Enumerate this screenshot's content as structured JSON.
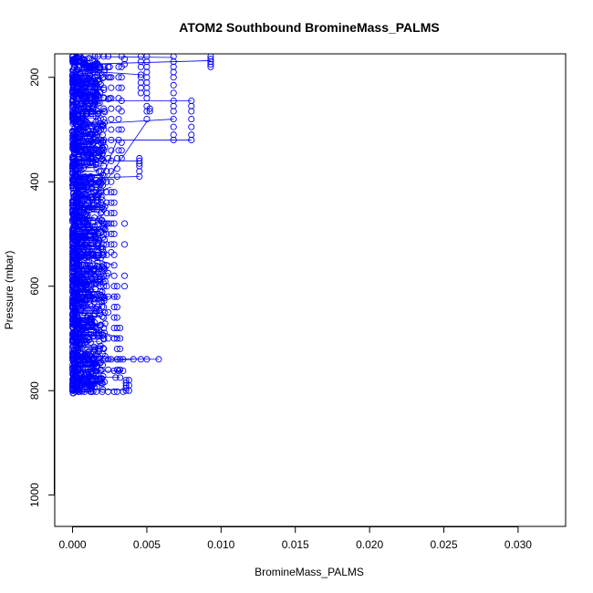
{
  "chart_data": {
    "type": "scatter",
    "title": "ATOM2 Southbound BromineMass_PALMS",
    "xlabel": "BromineMass_PALMS",
    "ylabel": "Pressure (mbar)",
    "xlim": [
      -0.0012,
      0.0332
    ],
    "ylim": [
      1060,
      155
    ],
    "y_reversed": true,
    "x_ticks": [
      0.0,
      0.005,
      0.01,
      0.015,
      0.02,
      0.025,
      0.03
    ],
    "x_tick_labels": [
      "0.000",
      "0.005",
      "0.010",
      "0.015",
      "0.020",
      "0.025",
      "0.030"
    ],
    "y_ticks": [
      200,
      400,
      600,
      800,
      1000
    ],
    "y_tick_labels": [
      "200",
      "400",
      "600",
      "800",
      "1000"
    ],
    "series": [
      {
        "color": "#0000ff",
        "marker": "open-circle",
        "connected": true,
        "points": [
          [
            0.0093,
            160
          ],
          [
            0.0093,
            165
          ],
          [
            0.0093,
            170
          ],
          [
            0.0093,
            175
          ],
          [
            0.0093,
            180
          ],
          [
            0.0068,
            160
          ],
          [
            0.0068,
            170
          ],
          [
            0.0068,
            180
          ],
          [
            0.0068,
            190
          ],
          [
            0.0068,
            200
          ],
          [
            0.0068,
            215
          ],
          [
            0.0068,
            230
          ],
          [
            0.0068,
            245
          ],
          [
            0.0068,
            255
          ],
          [
            0.0068,
            265
          ],
          [
            0.0068,
            280
          ],
          [
            0.0068,
            295
          ],
          [
            0.0068,
            310
          ],
          [
            0.0068,
            320
          ],
          [
            0.008,
            245
          ],
          [
            0.008,
            255
          ],
          [
            0.008,
            265
          ],
          [
            0.008,
            280
          ],
          [
            0.008,
            295
          ],
          [
            0.008,
            310
          ],
          [
            0.008,
            320
          ],
          [
            0.0046,
            160
          ],
          [
            0.0046,
            170
          ],
          [
            0.0046,
            180
          ],
          [
            0.0046,
            195
          ],
          [
            0.0046,
            200
          ],
          [
            0.0046,
            210
          ],
          [
            0.0046,
            220
          ],
          [
            0.0046,
            230
          ],
          [
            0.005,
            160
          ],
          [
            0.005,
            170
          ],
          [
            0.005,
            180
          ],
          [
            0.005,
            190
          ],
          [
            0.005,
            200
          ],
          [
            0.005,
            210
          ],
          [
            0.005,
            220
          ],
          [
            0.005,
            230
          ],
          [
            0.005,
            240
          ],
          [
            0.005,
            255
          ],
          [
            0.005,
            265
          ],
          [
            0.005,
            280
          ],
          [
            0.0052,
            260
          ],
          [
            0.0052,
            265
          ],
          [
            0.0045,
            355
          ],
          [
            0.0045,
            360
          ],
          [
            0.0045,
            365
          ],
          [
            0.0045,
            370
          ],
          [
            0.0045,
            380
          ],
          [
            0.0045,
            390
          ],
          [
            0.0031,
            180
          ],
          [
            0.0031,
            200
          ],
          [
            0.0031,
            220
          ],
          [
            0.0031,
            240
          ],
          [
            0.0031,
            260
          ],
          [
            0.0031,
            280
          ],
          [
            0.0031,
            300
          ],
          [
            0.0031,
            320
          ],
          [
            0.0031,
            340
          ],
          [
            0.0033,
            160
          ],
          [
            0.0033,
            180
          ],
          [
            0.0033,
            200
          ],
          [
            0.0033,
            220
          ],
          [
            0.0033,
            245
          ],
          [
            0.0033,
            265
          ],
          [
            0.0033,
            300
          ],
          [
            0.0033,
            325
          ],
          [
            0.0033,
            340
          ],
          [
            0.0033,
            355
          ],
          [
            0.0035,
            165
          ],
          [
            0.0035,
            175
          ],
          [
            0.0026,
            200
          ],
          [
            0.0026,
            220
          ],
          [
            0.0026,
            240
          ],
          [
            0.0026,
            260
          ],
          [
            0.0026,
            280
          ],
          [
            0.0026,
            300
          ],
          [
            0.0026,
            320
          ],
          [
            0.0026,
            340
          ],
          [
            0.0026,
            360
          ],
          [
            0.0026,
            380
          ],
          [
            0.0026,
            400
          ],
          [
            0.0026,
            420
          ],
          [
            0.0026,
            440
          ],
          [
            0.0026,
            460
          ],
          [
            0.0026,
            480
          ],
          [
            0.0026,
            500
          ],
          [
            0.0026,
            520
          ],
          [
            0.0026,
            535
          ],
          [
            0.0023,
            380
          ],
          [
            0.0023,
            400
          ],
          [
            0.0023,
            420
          ],
          [
            0.0023,
            440
          ],
          [
            0.0023,
            460
          ],
          [
            0.0023,
            480
          ],
          [
            0.0023,
            500
          ],
          [
            0.0023,
            520
          ],
          [
            0.0023,
            540
          ],
          [
            0.0023,
            560
          ],
          [
            0.0023,
            580
          ],
          [
            0.0023,
            600
          ],
          [
            0.0028,
            420
          ],
          [
            0.0028,
            440
          ],
          [
            0.0028,
            460
          ],
          [
            0.0028,
            480
          ],
          [
            0.0028,
            500
          ],
          [
            0.0028,
            520
          ],
          [
            0.0028,
            540
          ],
          [
            0.0028,
            560
          ],
          [
            0.0028,
            580
          ],
          [
            0.0028,
            600
          ],
          [
            0.0028,
            620
          ],
          [
            0.0028,
            640
          ],
          [
            0.0028,
            660
          ],
          [
            0.0028,
            680
          ],
          [
            0.0028,
            700
          ],
          [
            0.003,
            600
          ],
          [
            0.003,
            620
          ],
          [
            0.003,
            640
          ],
          [
            0.003,
            660
          ],
          [
            0.003,
            680
          ],
          [
            0.003,
            700
          ],
          [
            0.003,
            720
          ],
          [
            0.003,
            740
          ],
          [
            0.003,
            760
          ],
          [
            0.0032,
            680
          ],
          [
            0.0032,
            700
          ],
          [
            0.0032,
            720
          ],
          [
            0.0032,
            740
          ],
          [
            0.0032,
            760
          ],
          [
            0.0036,
            780
          ],
          [
            0.0036,
            785
          ],
          [
            0.0036,
            790
          ],
          [
            0.0036,
            795
          ],
          [
            0.0036,
            800
          ],
          [
            0.0038,
            780
          ],
          [
            0.0038,
            790
          ],
          [
            0.0038,
            800
          ],
          [
            0.0041,
            740
          ],
          [
            0.0058,
            740
          ],
          [
            0.005,
            740
          ],
          [
            0.0046,
            740
          ],
          [
            0.0028,
            762
          ],
          [
            0.0031,
            762
          ],
          [
            0.0034,
            762
          ],
          [
            0.0029,
            775
          ],
          [
            0.0032,
            775
          ],
          [
            0.0,
            800
          ],
          [
            0.0004,
            802
          ],
          [
            0.0008,
            802
          ],
          [
            0.0012,
            802
          ],
          [
            0.0016,
            802
          ],
          [
            0.002,
            802
          ],
          [
            0.0024,
            802
          ],
          [
            0.0028,
            802
          ],
          [
            0.003,
            802
          ],
          [
            0.0034,
            802
          ],
          [
            0.0,
            790
          ],
          [
            0.0001,
            780
          ],
          [
            0.0002,
            770
          ],
          [
            0.0004,
            760
          ],
          [
            0.0006,
            750
          ],
          [
            0.0008,
            745
          ],
          [
            0.001,
            740
          ],
          [
            0.0014,
            740
          ],
          [
            0.0018,
            740
          ],
          [
            0.0022,
            740
          ],
          [
            0.0026,
            740
          ],
          [
            0.003,
            740
          ],
          [
            0.0034,
            740
          ],
          [
            0.0015,
            160
          ],
          [
            0.0015,
            170
          ],
          [
            0.0015,
            180
          ],
          [
            0.0015,
            190
          ],
          [
            0.0015,
            200
          ],
          [
            0.0015,
            210
          ],
          [
            0.0015,
            220
          ],
          [
            0.0015,
            230
          ],
          [
            0.0015,
            240
          ],
          [
            0.0017,
            160
          ],
          [
            0.0017,
            175
          ],
          [
            0.0017,
            190
          ],
          [
            0.0017,
            205
          ],
          [
            0.0017,
            220
          ],
          [
            0.0017,
            235
          ],
          [
            0.0017,
            250
          ],
          [
            0.0017,
            265
          ],
          [
            0.0017,
            280
          ],
          [
            0.0019,
            300
          ],
          [
            0.0019,
            320
          ],
          [
            0.0019,
            340
          ],
          [
            0.0019,
            360
          ],
          [
            0.0019,
            380
          ],
          [
            0.0019,
            400
          ],
          [
            0.0019,
            420
          ],
          [
            0.0019,
            440
          ],
          [
            0.0019,
            460
          ],
          [
            0.0021,
            160
          ],
          [
            0.0021,
            180
          ],
          [
            0.0021,
            200
          ],
          [
            0.0021,
            220
          ],
          [
            0.0021,
            240
          ],
          [
            0.0021,
            260
          ],
          [
            0.0021,
            280
          ],
          [
            0.0021,
            300
          ],
          [
            0.0021,
            320
          ],
          [
            0.0021,
            340
          ],
          [
            0.0021,
            360
          ],
          [
            0.0021,
            480
          ],
          [
            0.0021,
            500
          ],
          [
            0.0021,
            520
          ],
          [
            0.0021,
            540
          ],
          [
            0.0021,
            560
          ],
          [
            0.0021,
            580
          ],
          [
            0.0021,
            600
          ],
          [
            0.0021,
            620
          ],
          [
            0.0021,
            640
          ],
          [
            0.0021,
            660
          ],
          [
            0.0021,
            680
          ],
          [
            0.0021,
            700
          ],
          [
            0.0021,
            720
          ],
          [
            0.0024,
            160
          ],
          [
            0.0024,
            180
          ],
          [
            0.0024,
            200
          ],
          [
            0.0024,
            242
          ],
          [
            0.0024,
            355
          ],
          [
            0.0024,
            480
          ],
          [
            0.0024,
            575
          ],
          [
            0.0024,
            620
          ],
          [
            0.0024,
            650
          ],
          [
            0.0024,
            700
          ],
          [
            0.0024,
            740
          ],
          [
            0.0024,
            760
          ],
          [
            0.0025,
            180
          ],
          [
            0.0025,
            200
          ],
          [
            0.0025,
            240
          ],
          [
            0.0035,
            480
          ],
          [
            0.0035,
            520
          ],
          [
            0.0035,
            580
          ],
          [
            0.0035,
            600
          ],
          [
            0.003,
            355
          ],
          [
            0.003,
            375
          ],
          [
            0.003,
            390
          ]
        ],
        "segments": [
          [
            [
              0.0008,
              175
            ],
            [
              0.0093,
              168
            ]
          ],
          [
            [
              0.002,
              190
            ],
            [
              0.0046,
              195
            ]
          ],
          [
            [
              0.0006,
              245
            ],
            [
              0.008,
              245
            ]
          ],
          [
            [
              0.001,
              290
            ],
            [
              0.0068,
              280
            ]
          ],
          [
            [
              0.0012,
              320
            ],
            [
              0.008,
              320
            ]
          ],
          [
            [
              0.0004,
              360
            ],
            [
              0.0045,
              360
            ]
          ],
          [
            [
              0.0006,
              393
            ],
            [
              0.0045,
              390
            ]
          ],
          [
            [
              0.0003,
              480
            ],
            [
              0.005,
              285
            ]
          ],
          [
            [
              0.0002,
              520
            ],
            [
              0.003,
              320
            ]
          ],
          [
            [
              0.001,
              620
            ],
            [
              0.0031,
              620
            ]
          ],
          [
            [
              0.0,
              738
            ],
            [
              0.0058,
              740
            ]
          ],
          [
            [
              0.0002,
              745
            ],
            [
              0.0041,
              740
            ]
          ],
          [
            [
              0.0,
              765
            ],
            [
              0.0034,
              762
            ]
          ],
          [
            [
              0.0,
              772
            ],
            [
              0.0032,
              775
            ]
          ],
          [
            [
              0.0,
              798
            ],
            [
              0.0036,
              798
            ]
          ],
          [
            [
              0.0004,
              160
            ],
            [
              0.0068,
              162
            ]
          ],
          [
            [
              0.0006,
              430
            ],
            [
              0.0026,
              410
            ]
          ],
          [
            [
              0.0008,
              540
            ],
            [
              0.0028,
              560
            ]
          ],
          [
            [
              0.0005,
              600
            ],
            [
              0.0023,
              580
            ]
          ],
          [
            [
              0.0012,
              680
            ],
            [
              0.0032,
              700
            ]
          ]
        ],
        "dense_band": {
          "x_min": 0.0,
          "x_max": 0.0022,
          "p_min": 158,
          "p_max": 805
        }
      }
    ]
  }
}
